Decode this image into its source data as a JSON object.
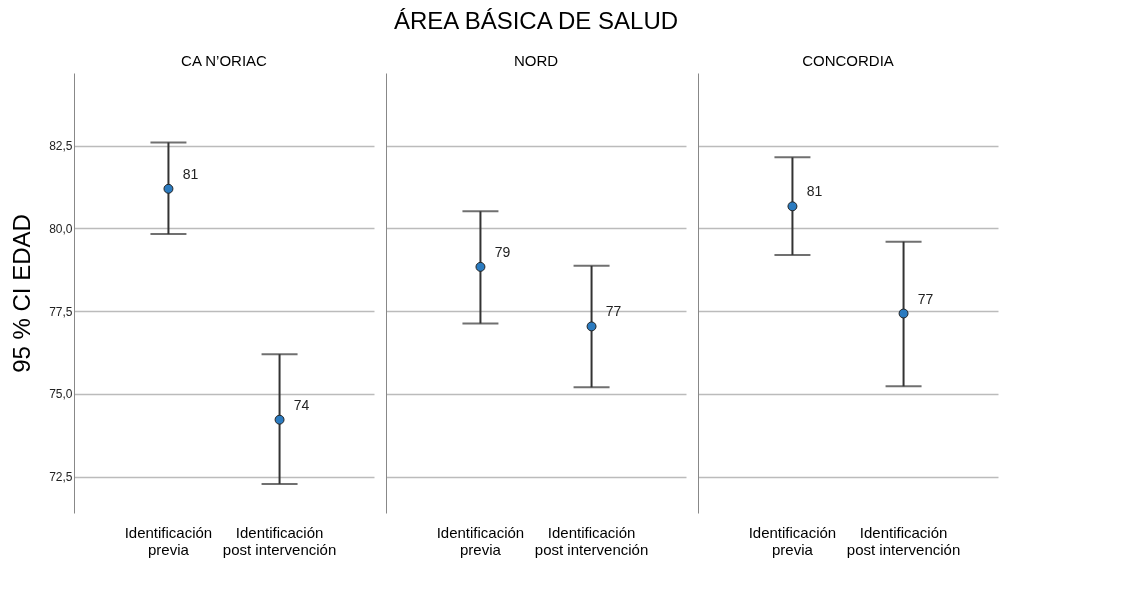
{
  "chart_data": [
    {
      "type": "scatter",
      "subtitle": "CA N’ORIAC",
      "ylabel": "95 % CI EDAD",
      "categories": [
        "Identificación previa",
        "Identificación post intervención"
      ],
      "series": [
        {
          "color": "#2b7bc0",
          "values": [
            81.2,
            74.22
          ],
          "errors": [
            [
              79.83,
              82.6
            ],
            [
              72.28,
              76.2
            ]
          ],
          "value_labels": [
            "81",
            "74"
          ]
        }
      ],
      "ylim": [
        71.4,
        84.7
      ],
      "yticks": [
        {
          "value": 72.5,
          "label": "72,5"
        },
        {
          "value": 75,
          "label": "75,0"
        },
        {
          "value": 77.5,
          "label": "77,5"
        },
        {
          "value": 80,
          "label": "80,0"
        },
        {
          "value": 82.5,
          "label": "82,5"
        }
      ],
      "grid": "y",
      "marker": "circle"
    },
    {
      "type": "scatter",
      "title": "ÁREA BÁSICA DE SALUD",
      "subtitle": "NORD",
      "categories": [
        "Identificación previa",
        "Identificación post intervención"
      ],
      "series": [
        {
          "color": "#2b7bc0",
          "values": [
            78.84,
            77.04
          ],
          "errors": [
            [
              77.13,
              80.52
            ],
            [
              75.2,
              78.87
            ]
          ],
          "value_labels": [
            "79",
            "77"
          ]
        }
      ],
      "ylim": [
        71.4,
        84.7
      ],
      "yticks": [
        72.5,
        75,
        77.5,
        80,
        82.5
      ],
      "grid": "y",
      "marker": "circle",
      "tick_labels": "x"
    },
    {
      "type": "scatter",
      "subtitle": "CONCORDIA",
      "categories": [
        "Identificación previa",
        "Identificación post intervención"
      ],
      "series": [
        {
          "color": "#2b7bc0",
          "values": [
            80.67,
            77.43
          ],
          "errors": [
            [
              79.2,
              82.15
            ],
            [
              75.23,
              79.6
            ]
          ],
          "value_labels": [
            "81",
            "77"
          ]
        }
      ],
      "ylim": [
        71.4,
        84.7
      ],
      "yticks": [
        72.5,
        75,
        77.5,
        80,
        82.5
      ],
      "grid": "y",
      "marker": "circle",
      "tick_labels": "x"
    }
  ]
}
